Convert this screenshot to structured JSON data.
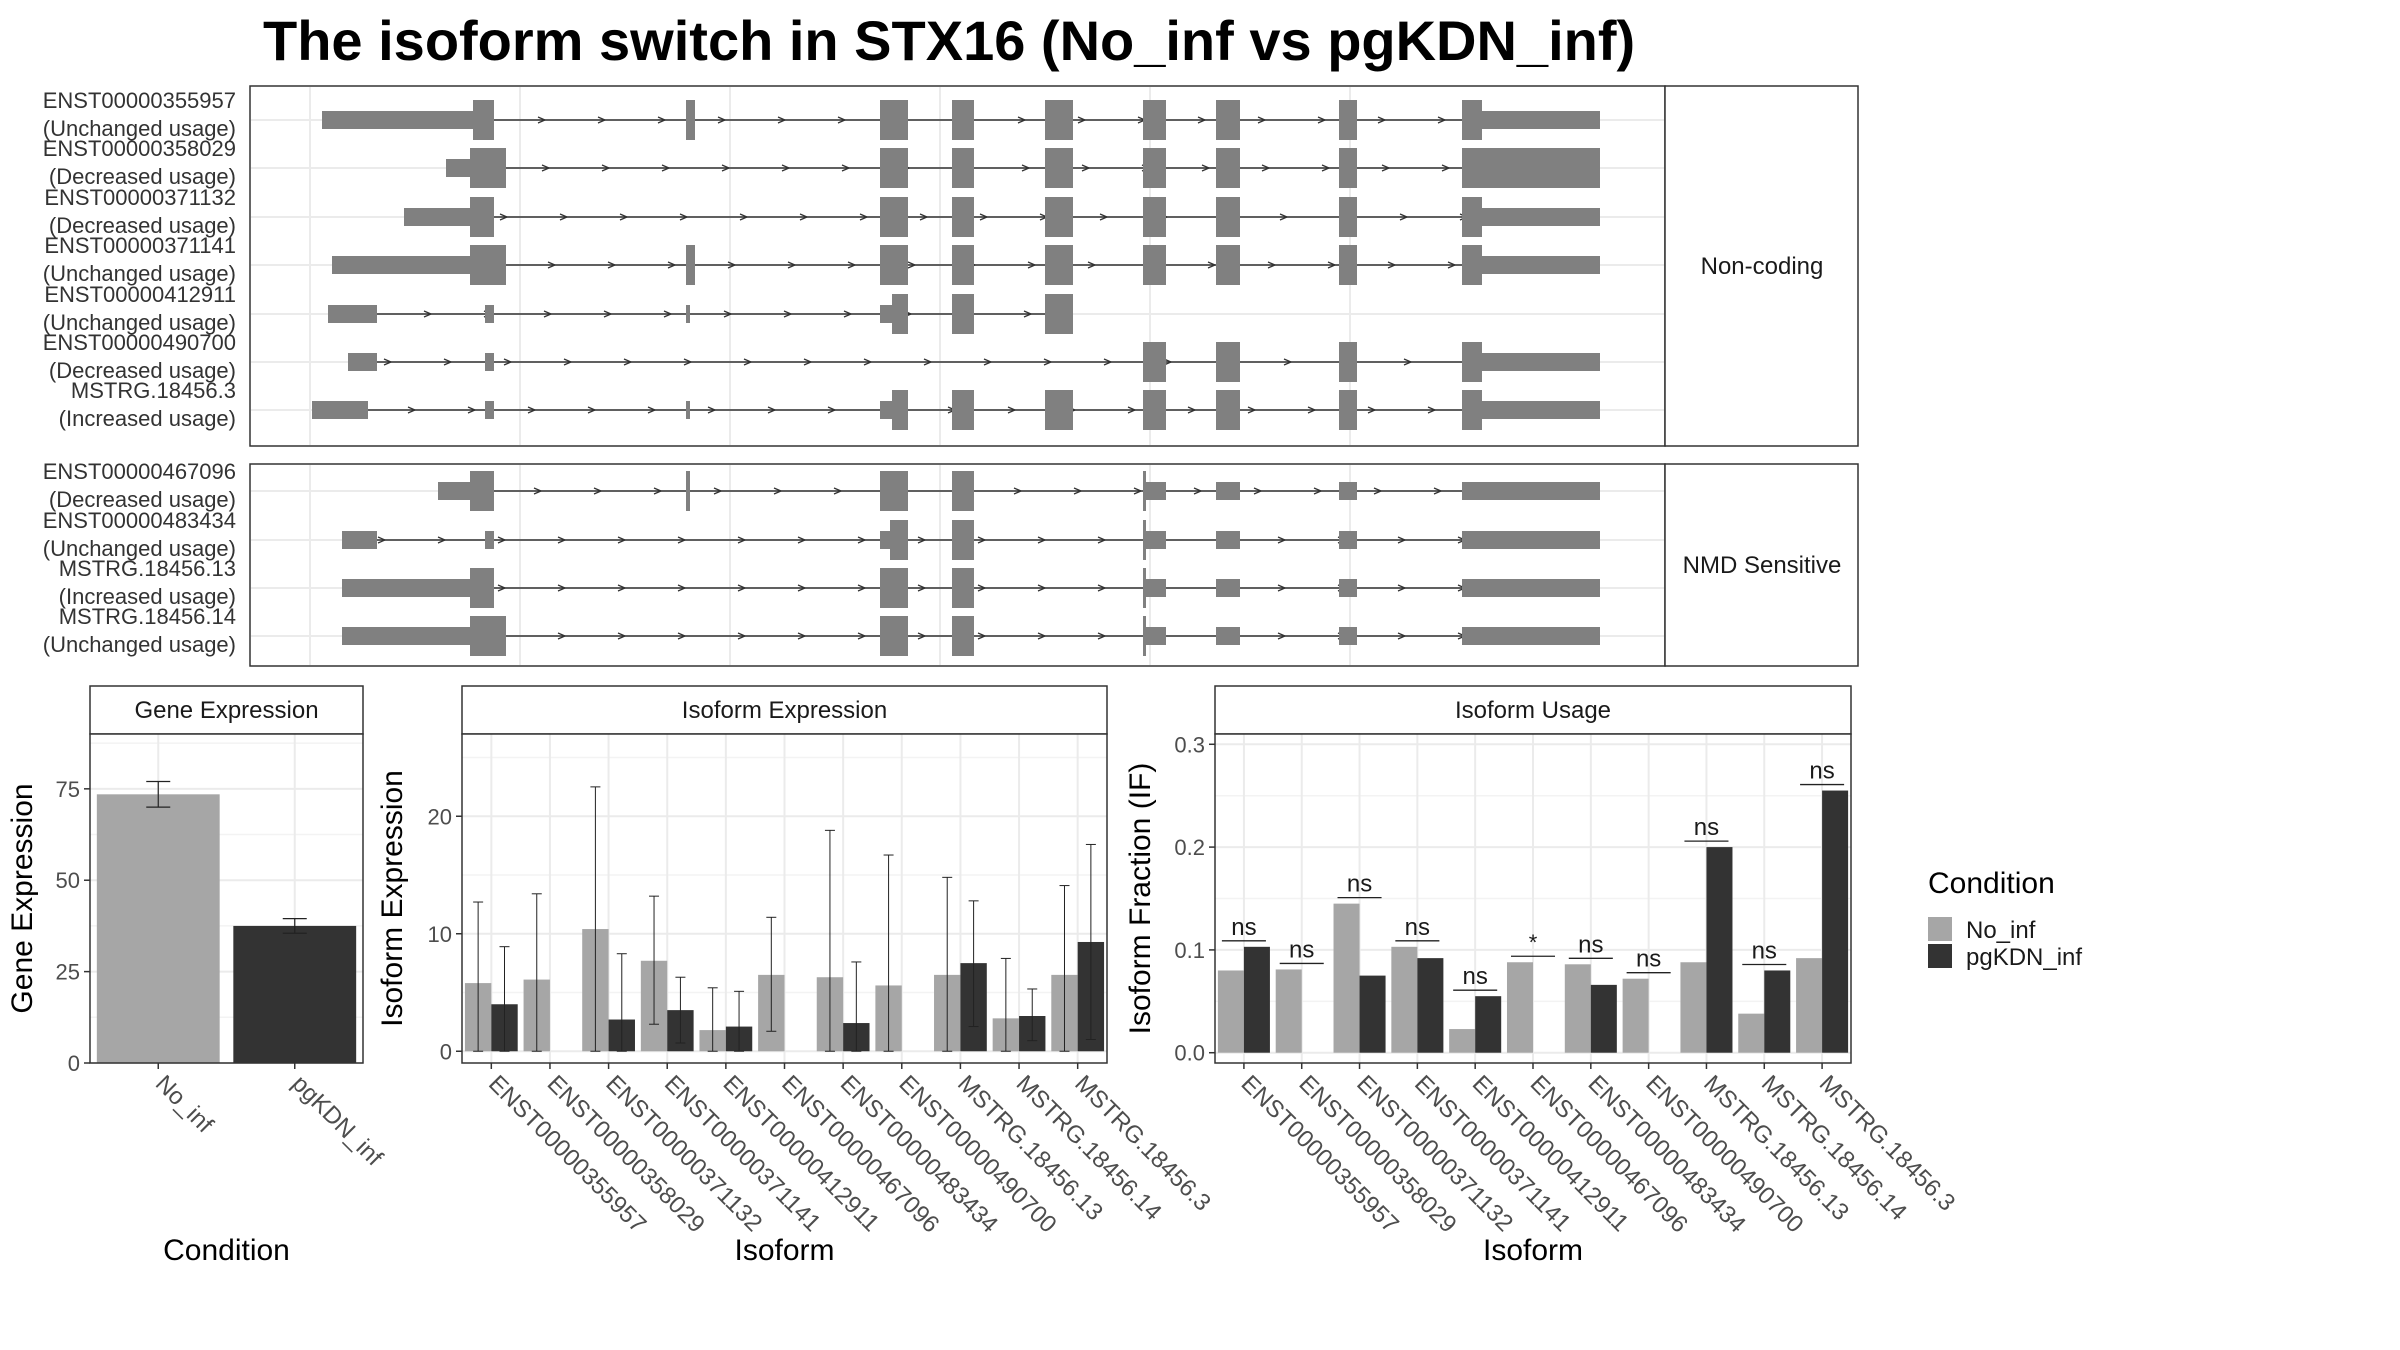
{
  "title": "The isoform switch in STX16 (No_inf vs pgKDN_inf)",
  "colors": {
    "no_inf": "#a6a6a6",
    "pgkdn_inf": "#333333",
    "exon": "#808080",
    "grid": "#ebebeb",
    "strip": "#ffffff"
  },
  "structure": {
    "panels": [
      {
        "label": "Non-coding",
        "rows": [
          {
            "id": "ENST00000355957",
            "usage": "(Unchanged usage)"
          },
          {
            "id": "ENST00000358029",
            "usage": "(Decreased usage)"
          },
          {
            "id": "ENST00000371132",
            "usage": "(Decreased usage)"
          },
          {
            "id": "ENST00000371141",
            "usage": "(Unchanged usage)"
          },
          {
            "id": "ENST00000412911",
            "usage": "(Unchanged usage)"
          },
          {
            "id": "ENST00000490700",
            "usage": "(Decreased usage)"
          },
          {
            "id": "MSTRG.18456.3",
            "usage": "(Increased usage)"
          }
        ]
      },
      {
        "label": "NMD Sensitive",
        "rows": [
          {
            "id": "ENST00000467096",
            "usage": "(Decreased usage)"
          },
          {
            "id": "ENST00000483434",
            "usage": "(Unchanged usage)"
          },
          {
            "id": "MSTRG.18456.13",
            "usage": "(Increased usage)"
          },
          {
            "id": "MSTRG.18456.14",
            "usage": "(Unchanged usage)"
          }
        ]
      }
    ]
  },
  "chart_data": [
    {
      "type": "bar",
      "title": "Gene Expression",
      "xlabel": "Condition",
      "ylabel": "Gene Expression",
      "ylim": [
        0,
        90
      ],
      "yticks": [
        0,
        25,
        50,
        75
      ],
      "categories": [
        "No_inf",
        "pgKDN_inf"
      ],
      "values": [
        73.5,
        37.5
      ],
      "errors": [
        [
          70,
          77
        ],
        [
          35.5,
          39.5
        ]
      ]
    },
    {
      "type": "bar",
      "title": "Isoform Expression",
      "xlabel": "Isoform",
      "ylabel": "Isoform Expression",
      "ylim": [
        -1,
        27
      ],
      "yticks": [
        0,
        10,
        20
      ],
      "categories": [
        "ENST00000355957",
        "ENST00000358029",
        "ENST00000371132",
        "ENST00000371141",
        "ENST00000412911",
        "ENST00000467096",
        "ENST00000483434",
        "ENST00000490700",
        "MSTRG.18456.13",
        "MSTRG.18456.14",
        "MSTRG.18456.3"
      ],
      "series": [
        {
          "name": "No_inf",
          "values": [
            5.8,
            6.1,
            10.4,
            7.7,
            1.8,
            6.5,
            6.3,
            5.6,
            6.5,
            2.8,
            6.5
          ],
          "errors": [
            [
              0,
              12.7
            ],
            [
              0,
              13.4
            ],
            [
              0,
              22.5
            ],
            [
              2.3,
              13.2
            ],
            [
              0,
              5.4
            ],
            [
              1.7,
              11.4
            ],
            [
              0,
              18.8
            ],
            [
              0,
              16.7
            ],
            [
              0,
              14.8
            ],
            [
              0,
              7.9
            ],
            [
              0,
              14.1
            ]
          ]
        },
        {
          "name": "pgKDN_inf",
          "values": [
            4.0,
            0,
            2.7,
            3.5,
            2.1,
            0,
            2.4,
            0,
            7.5,
            3.0,
            9.3
          ],
          "errors": [
            [
              0,
              8.9
            ],
            null,
            [
              0,
              8.3
            ],
            [
              0.7,
              6.3
            ],
            [
              0,
              5.1
            ],
            null,
            [
              0,
              7.6
            ],
            null,
            [
              2.1,
              12.8
            ],
            [
              0.9,
              5.3
            ],
            [
              1,
              17.6
            ]
          ]
        }
      ]
    },
    {
      "type": "bar",
      "title": "Isoform Usage",
      "xlabel": "Isoform",
      "ylabel": "Isoform Fraction (IF)",
      "ylim": [
        -0.01,
        0.31
      ],
      "yticks": [
        0.0,
        0.1,
        0.2,
        0.3
      ],
      "categories": [
        "ENST00000355957",
        "ENST00000358029",
        "ENST00000371132",
        "ENST00000371141",
        "ENST00000412911",
        "ENST00000467096",
        "ENST00000483434",
        "ENST00000490700",
        "MSTRG.18456.13",
        "MSTRG.18456.14",
        "MSTRG.18456.3"
      ],
      "series": [
        {
          "name": "No_inf",
          "values": [
            0.08,
            0.081,
            0.145,
            0.103,
            0.023,
            0.088,
            0.086,
            0.072,
            0.088,
            0.038,
            0.092
          ]
        },
        {
          "name": "pgKDN_inf",
          "values": [
            0.103,
            0,
            0.075,
            0.092,
            0.055,
            0,
            0.066,
            0,
            0.2,
            0.08,
            0.255
          ]
        }
      ],
      "significance": [
        "ns",
        "ns",
        "ns",
        "ns",
        "ns",
        "*",
        "ns",
        "ns",
        "ns",
        "ns",
        "ns"
      ]
    }
  ],
  "legend": {
    "title": "Condition",
    "items": [
      "No_inf",
      "pgKDN_inf"
    ]
  }
}
